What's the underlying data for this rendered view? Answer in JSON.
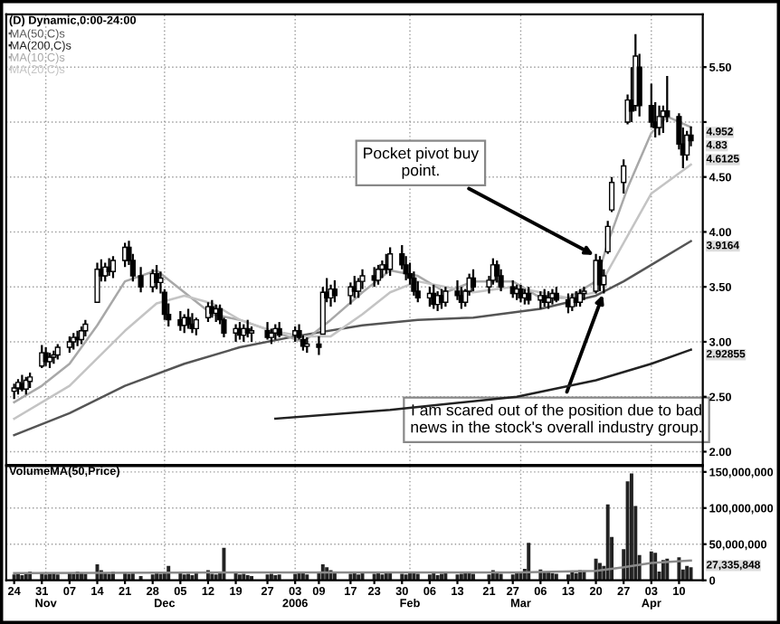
{
  "chart_data": [
    {
      "type": "candlestick",
      "title": "(D) Dynamic,0:00-24:00",
      "x": [
        "2005-10-24",
        "2005-10-25",
        "2005-10-26",
        "2005-10-27",
        "2005-10-28",
        "2005-10-31",
        "2005-11-01",
        "2005-11-02",
        "2005-11-03",
        "2005-11-04",
        "2005-11-07",
        "2005-11-08",
        "2005-11-09",
        "2005-11-10",
        "2005-11-11",
        "2005-11-14",
        "2005-11-15",
        "2005-11-16",
        "2005-11-17",
        "2005-11-18",
        "2005-11-21",
        "2005-11-22",
        "2005-11-23",
        "2005-11-25",
        "2005-11-28",
        "2005-11-29",
        "2005-11-30",
        "2005-12-01",
        "2005-12-02",
        "2005-12-05",
        "2005-12-06",
        "2005-12-07",
        "2005-12-08",
        "2005-12-09",
        "2005-12-12",
        "2005-12-13",
        "2005-12-14",
        "2005-12-15",
        "2005-12-16",
        "2005-12-19",
        "2005-12-20",
        "2005-12-21",
        "2005-12-22",
        "2005-12-23",
        "2005-12-27",
        "2005-12-28",
        "2005-12-29",
        "2005-12-30",
        "2006-01-03",
        "2006-01-04",
        "2006-01-05",
        "2006-01-06",
        "2006-01-09",
        "2006-01-10",
        "2006-01-11",
        "2006-01-12",
        "2006-01-13",
        "2006-01-17",
        "2006-01-18",
        "2006-01-19",
        "2006-01-20",
        "2006-01-23",
        "2006-01-24",
        "2006-01-25",
        "2006-01-26",
        "2006-01-27",
        "2006-01-30",
        "2006-01-31",
        "2006-02-01",
        "2006-02-02",
        "2006-02-03",
        "2006-02-06",
        "2006-02-07",
        "2006-02-08",
        "2006-02-09",
        "2006-02-10",
        "2006-02-13",
        "2006-02-14",
        "2006-02-15",
        "2006-02-16",
        "2006-02-17",
        "2006-02-21",
        "2006-02-22",
        "2006-02-23",
        "2006-02-24",
        "2006-02-27",
        "2006-02-28",
        "2006-03-01",
        "2006-03-02",
        "2006-03-03",
        "2006-03-06",
        "2006-03-07",
        "2006-03-08",
        "2006-03-09",
        "2006-03-10",
        "2006-03-13",
        "2006-03-14",
        "2006-03-15",
        "2006-03-16",
        "2006-03-17",
        "2006-03-20",
        "2006-03-21",
        "2006-03-22",
        "2006-03-23",
        "2006-03-24",
        "2006-03-27",
        "2006-03-28",
        "2006-03-29",
        "2006-03-30",
        "2006-03-31",
        "2006-04-03",
        "2006-04-04",
        "2006-04-05",
        "2006-04-06",
        "2006-04-07",
        "2006-04-10",
        "2006-04-11",
        "2006-04-12",
        "2006-04-13"
      ],
      "ohlc": [
        [
          2.55,
          2.62,
          2.48,
          2.58
        ],
        [
          2.58,
          2.66,
          2.52,
          2.63
        ],
        [
          2.62,
          2.7,
          2.55,
          2.57
        ],
        [
          2.57,
          2.68,
          2.52,
          2.65
        ],
        [
          2.64,
          2.72,
          2.58,
          2.68
        ],
        [
          2.78,
          2.97,
          2.76,
          2.9
        ],
        [
          2.9,
          2.95,
          2.78,
          2.82
        ],
        [
          2.82,
          2.9,
          2.76,
          2.86
        ],
        [
          2.86,
          2.92,
          2.8,
          2.88
        ],
        [
          2.88,
          2.98,
          2.84,
          2.95
        ],
        [
          2.95,
          3.05,
          2.9,
          3.0
        ],
        [
          3.0,
          3.08,
          2.93,
          3.04
        ],
        [
          3.04,
          3.1,
          2.96,
          3.02
        ],
        [
          3.02,
          3.14,
          2.98,
          3.1
        ],
        [
          3.1,
          3.2,
          3.05,
          3.16
        ],
        [
          3.36,
          3.72,
          3.36,
          3.66
        ],
        [
          3.66,
          3.75,
          3.55,
          3.6
        ],
        [
          3.6,
          3.72,
          3.55,
          3.68
        ],
        [
          3.68,
          3.76,
          3.6,
          3.64
        ],
        [
          3.64,
          3.78,
          3.58,
          3.74
        ],
        [
          3.74,
          3.9,
          3.68,
          3.86
        ],
        [
          3.86,
          3.92,
          3.7,
          3.74
        ],
        [
          3.74,
          3.8,
          3.55,
          3.6
        ],
        [
          3.6,
          3.68,
          3.45,
          3.5
        ],
        [
          3.5,
          3.66,
          3.45,
          3.62
        ],
        [
          3.62,
          3.7,
          3.48,
          3.54
        ],
        [
          3.54,
          3.64,
          3.44,
          3.58
        ],
        [
          3.45,
          3.48,
          3.2,
          3.25
        ],
        [
          3.25,
          3.35,
          3.14,
          3.2
        ],
        [
          3.2,
          3.28,
          3.1,
          3.15
        ],
        [
          3.15,
          3.25,
          3.08,
          3.22
        ],
        [
          3.22,
          3.3,
          3.12,
          3.16
        ],
        [
          3.16,
          3.26,
          3.08,
          3.12
        ],
        [
          3.12,
          3.22,
          3.06,
          3.2
        ],
        [
          3.22,
          3.36,
          3.18,
          3.32
        ],
        [
          3.32,
          3.38,
          3.22,
          3.26
        ],
        [
          3.26,
          3.34,
          3.18,
          3.3
        ],
        [
          3.3,
          3.34,
          3.16,
          3.2
        ],
        [
          3.2,
          3.22,
          3.04,
          3.08
        ],
        [
          3.08,
          3.16,
          3.0,
          3.12
        ],
        [
          3.12,
          3.18,
          3.02,
          3.06
        ],
        [
          3.06,
          3.16,
          3.0,
          3.12
        ],
        [
          3.12,
          3.2,
          3.04,
          3.08
        ],
        [
          3.08,
          3.14,
          3.0,
          3.1
        ],
        [
          3.1,
          3.18,
          3.02,
          3.04
        ],
        [
          3.04,
          3.12,
          2.98,
          3.08
        ],
        [
          3.08,
          3.16,
          3.02,
          3.12
        ],
        [
          3.12,
          3.18,
          3.04,
          3.06
        ],
        [
          3.06,
          3.14,
          3.0,
          3.1
        ],
        [
          3.1,
          3.16,
          3.02,
          3.04
        ],
        [
          3.02,
          3.06,
          2.92,
          2.96
        ],
        [
          2.96,
          3.04,
          2.9,
          2.98
        ],
        [
          2.98,
          3.05,
          2.88,
          2.95
        ],
        [
          3.07,
          3.5,
          3.07,
          3.45
        ],
        [
          3.45,
          3.58,
          3.36,
          3.4
        ],
        [
          3.4,
          3.52,
          3.32,
          3.48
        ],
        [
          3.48,
          3.56,
          3.36,
          3.42
        ],
        [
          3.42,
          3.54,
          3.34,
          3.5
        ],
        [
          3.5,
          3.6,
          3.4,
          3.46
        ],
        [
          3.46,
          3.58,
          3.4,
          3.55
        ],
        [
          3.55,
          3.66,
          3.48,
          3.6
        ],
        [
          3.6,
          3.68,
          3.5,
          3.56
        ],
        [
          3.56,
          3.7,
          3.52,
          3.66
        ],
        [
          3.66,
          3.74,
          3.58,
          3.7
        ],
        [
          3.7,
          3.8,
          3.62,
          3.66
        ],
        [
          3.66,
          3.86,
          3.6,
          3.8
        ],
        [
          3.8,
          3.88,
          3.66,
          3.7
        ],
        [
          3.7,
          3.78,
          3.56,
          3.62
        ],
        [
          3.62,
          3.72,
          3.52,
          3.58
        ],
        [
          3.58,
          3.64,
          3.42,
          3.46
        ],
        [
          3.46,
          3.55,
          3.36,
          3.4
        ],
        [
          3.4,
          3.5,
          3.32,
          3.44
        ],
        [
          3.44,
          3.52,
          3.3,
          3.34
        ],
        [
          3.34,
          3.46,
          3.28,
          3.42
        ],
        [
          3.42,
          3.48,
          3.3,
          3.36
        ],
        [
          3.36,
          3.5,
          3.32,
          3.46
        ],
        [
          3.46,
          3.56,
          3.38,
          3.42
        ],
        [
          3.42,
          3.5,
          3.3,
          3.36
        ],
        [
          3.36,
          3.48,
          3.32,
          3.46
        ],
        [
          3.46,
          3.62,
          3.42,
          3.58
        ],
        [
          3.58,
          3.66,
          3.46,
          3.5
        ],
        [
          3.5,
          3.6,
          3.44,
          3.56
        ],
        [
          3.56,
          3.76,
          3.52,
          3.7
        ],
        [
          3.7,
          3.74,
          3.54,
          3.6
        ],
        [
          3.6,
          3.66,
          3.46,
          3.5
        ],
        [
          3.5,
          3.56,
          3.4,
          3.44
        ],
        [
          3.44,
          3.52,
          3.38,
          3.48
        ],
        [
          3.48,
          3.52,
          3.36,
          3.4
        ],
        [
          3.4,
          3.48,
          3.34,
          3.44
        ],
        [
          3.44,
          3.5,
          3.34,
          3.38
        ],
        [
          3.38,
          3.46,
          3.3,
          3.42
        ],
        [
          3.42,
          3.48,
          3.32,
          3.36
        ],
        [
          3.36,
          3.46,
          3.3,
          3.4
        ],
        [
          3.4,
          3.48,
          3.34,
          3.44
        ],
        [
          3.44,
          3.5,
          3.36,
          3.38
        ],
        [
          3.38,
          3.44,
          3.26,
          3.32
        ],
        [
          3.32,
          3.44,
          3.28,
          3.4
        ],
        [
          3.4,
          3.46,
          3.32,
          3.36
        ],
        [
          3.36,
          3.48,
          3.32,
          3.44
        ],
        [
          3.44,
          3.5,
          3.38,
          3.46
        ],
        [
          3.46,
          3.8,
          3.44,
          3.74
        ],
        [
          3.74,
          3.78,
          3.46,
          3.52
        ],
        [
          3.52,
          3.66,
          3.44,
          3.6
        ],
        [
          3.82,
          4.1,
          3.8,
          4.05
        ],
        [
          4.2,
          4.5,
          4.18,
          4.45
        ],
        [
          4.45,
          4.66,
          4.35,
          4.6
        ],
        [
          5.0,
          5.25,
          4.98,
          5.2
        ],
        [
          5.2,
          5.5,
          5.0,
          5.1
        ],
        [
          5.15,
          5.8,
          5.1,
          5.6
        ],
        [
          5.5,
          5.62,
          5.05,
          5.15
        ],
        [
          5.15,
          5.35,
          4.95,
          5.0
        ],
        [
          5.0,
          5.18,
          4.86,
          4.95
        ],
        [
          4.95,
          5.15,
          4.88,
          5.05
        ],
        [
          5.05,
          5.15,
          4.9,
          5.1
        ],
        [
          5.1,
          5.42,
          5.0,
          5.05
        ],
        [
          5.05,
          5.08,
          4.75,
          4.8
        ],
        [
          4.8,
          4.95,
          4.58,
          4.7
        ],
        [
          4.7,
          4.92,
          4.65,
          4.88
        ],
        [
          4.88,
          4.96,
          4.78,
          4.83
        ]
      ],
      "color": "#000000",
      "series": [
        {
          "name": "MA(50,C)s",
          "type": "line",
          "color": "#555555",
          "x": [
            "2005-10-24",
            "2005-11-07",
            "2005-11-21",
            "2005-12-06",
            "2005-12-20",
            "2006-01-03",
            "2006-01-20",
            "2006-02-03",
            "2006-02-17",
            "2006-03-06",
            "2006-03-20",
            "2006-03-27",
            "2006-04-03",
            "2006-04-13"
          ],
          "values": [
            2.15,
            2.35,
            2.6,
            2.8,
            2.95,
            3.05,
            3.15,
            3.2,
            3.22,
            3.3,
            3.42,
            3.55,
            3.7,
            3.9164
          ]
        },
        {
          "name": "MA(200,C)s",
          "type": "line",
          "color": "#222222",
          "x": [
            "2005-12-29",
            "2006-01-27",
            "2006-02-28",
            "2006-03-20",
            "2006-04-03",
            "2006-04-13"
          ],
          "values": [
            2.3,
            2.38,
            2.5,
            2.65,
            2.8,
            2.92855
          ]
        },
        {
          "name": "MA(10,C)s",
          "type": "line",
          "color": "#a8a8a8",
          "x": [
            "2005-10-24",
            "2005-10-31",
            "2005-11-07",
            "2005-11-14",
            "2005-11-21",
            "2005-11-29",
            "2005-12-06",
            "2005-12-13",
            "2005-12-20",
            "2005-12-28",
            "2006-01-05",
            "2006-01-12",
            "2006-01-20",
            "2006-01-27",
            "2006-02-03",
            "2006-02-10",
            "2006-02-17",
            "2006-02-27",
            "2006-03-06",
            "2006-03-13",
            "2006-03-20",
            "2006-03-23",
            "2006-03-28",
            "2006-04-03",
            "2006-04-07",
            "2006-04-13"
          ],
          "values": [
            2.45,
            2.6,
            2.8,
            3.15,
            3.55,
            3.65,
            3.45,
            3.25,
            3.2,
            3.1,
            3.0,
            3.2,
            3.45,
            3.65,
            3.6,
            3.45,
            3.55,
            3.55,
            3.4,
            3.4,
            3.55,
            3.9,
            4.4,
            4.9,
            5.05,
            4.952
          ]
        },
        {
          "name": "MA(20,C)s",
          "type": "line",
          "color": "#c4c4c4",
          "x": [
            "2005-10-24",
            "2005-11-07",
            "2005-11-21",
            "2005-11-29",
            "2005-12-06",
            "2005-12-13",
            "2005-12-20",
            "2005-12-28",
            "2006-01-05",
            "2006-01-12",
            "2006-01-20",
            "2006-01-27",
            "2006-02-03",
            "2006-02-10",
            "2006-02-17",
            "2006-02-27",
            "2006-03-06",
            "2006-03-13",
            "2006-03-20",
            "2006-03-27",
            "2006-04-03",
            "2006-04-13"
          ],
          "values": [
            2.3,
            2.6,
            3.1,
            3.35,
            3.42,
            3.35,
            3.2,
            3.1,
            3.05,
            3.05,
            3.25,
            3.45,
            3.55,
            3.5,
            3.45,
            3.5,
            3.45,
            3.4,
            3.45,
            3.9,
            4.35,
            4.6125
          ]
        }
      ],
      "xlim": [
        "2005-10-22",
        "2006-04-16"
      ],
      "xticks": [
        {
          "value": "2005-11-01",
          "label": null
        },
        {
          "value": "2005-12-01",
          "label": null
        },
        {
          "value": "2006-01-03",
          "label": null
        },
        {
          "value": "2006-02-01",
          "label": null
        },
        {
          "value": "2006-03-01",
          "label": null
        },
        {
          "value": "2006-04-03",
          "label": null
        }
      ],
      "ylim": [
        1.88,
        5.98
      ],
      "yticks": [
        {
          "value": 2,
          "label": "2.00"
        },
        {
          "value": 2.5,
          "label": "2.50"
        },
        {
          "value": 3,
          "label": "3.00"
        },
        {
          "value": 3.5,
          "label": "3.50"
        },
        {
          "value": 4,
          "label": "4.00"
        },
        {
          "value": 4.5,
          "label": "4.50"
        },
        {
          "value": 5,
          "label": null
        },
        {
          "value": 5.5,
          "label": "5.50"
        }
      ],
      "tick_labels": "y",
      "grid": true,
      "legend": "top left",
      "annotations": [
        {
          "text": "Pocket pivot buy point.",
          "x": "2006-03-20",
          "y": 3.78
        },
        {
          "text": "I am scared out of the position due to bad news in the stock's overall industry group.",
          "x": "2006-03-22",
          "y": 3.45
        },
        {
          "text": "4.952",
          "x": "2006-04-13",
          "y": 4.952
        },
        {
          "text": "4.83",
          "x": "2006-04-13",
          "y": 4.83
        },
        {
          "text": "4.6125",
          "x": "2006-04-13",
          "y": 4.6125
        },
        {
          "text": "3.9164",
          "x": "2006-04-13",
          "y": 3.9164
        },
        {
          "text": "2.92855",
          "x": "2006-04-13",
          "y": 2.92855
        }
      ]
    },
    {
      "type": "bar",
      "title": "VolumeMA(50,Price)",
      "x": [
        "2005-10-24",
        "2005-10-25",
        "2005-10-26",
        "2005-10-27",
        "2005-10-28",
        "2005-10-31",
        "2005-11-01",
        "2005-11-02",
        "2005-11-03",
        "2005-11-04",
        "2005-11-07",
        "2005-11-08",
        "2005-11-09",
        "2005-11-10",
        "2005-11-11",
        "2005-11-14",
        "2005-11-15",
        "2005-11-16",
        "2005-11-17",
        "2005-11-18",
        "2005-11-21",
        "2005-11-22",
        "2005-11-23",
        "2005-11-25",
        "2005-11-28",
        "2005-11-29",
        "2005-11-30",
        "2005-12-01",
        "2005-12-02",
        "2005-12-05",
        "2005-12-06",
        "2005-12-07",
        "2005-12-08",
        "2005-12-09",
        "2005-12-12",
        "2005-12-13",
        "2005-12-14",
        "2005-12-15",
        "2005-12-16",
        "2005-12-19",
        "2005-12-20",
        "2005-12-21",
        "2005-12-22",
        "2005-12-23",
        "2005-12-27",
        "2005-12-28",
        "2005-12-29",
        "2005-12-30",
        "2006-01-03",
        "2006-01-04",
        "2006-01-05",
        "2006-01-06",
        "2006-01-09",
        "2006-01-10",
        "2006-01-11",
        "2006-01-12",
        "2006-01-13",
        "2006-01-17",
        "2006-01-18",
        "2006-01-19",
        "2006-01-20",
        "2006-01-23",
        "2006-01-24",
        "2006-01-25",
        "2006-01-26",
        "2006-01-27",
        "2006-01-30",
        "2006-01-31",
        "2006-02-01",
        "2006-02-02",
        "2006-02-03",
        "2006-02-06",
        "2006-02-07",
        "2006-02-08",
        "2006-02-09",
        "2006-02-10",
        "2006-02-13",
        "2006-02-14",
        "2006-02-15",
        "2006-02-16",
        "2006-02-17",
        "2006-02-21",
        "2006-02-22",
        "2006-02-23",
        "2006-02-24",
        "2006-02-27",
        "2006-02-28",
        "2006-03-01",
        "2006-03-02",
        "2006-03-03",
        "2006-03-06",
        "2006-03-07",
        "2006-03-08",
        "2006-03-09",
        "2006-03-10",
        "2006-03-13",
        "2006-03-14",
        "2006-03-15",
        "2006-03-16",
        "2006-03-17",
        "2006-03-20",
        "2006-03-21",
        "2006-03-22",
        "2006-03-23",
        "2006-03-24",
        "2006-03-27",
        "2006-03-28",
        "2006-03-29",
        "2006-03-30",
        "2006-03-31",
        "2006-04-03",
        "2006-04-04",
        "2006-04-05",
        "2006-04-06",
        "2006-04-07",
        "2006-04-10",
        "2006-04-11",
        "2006-04-12",
        "2006-04-13"
      ],
      "series": [
        {
          "type": "bar",
          "color": "#222222",
          "values": [
            8000000,
            10000000,
            7000000,
            9000000,
            12000000,
            10000000,
            8000000,
            9000000,
            11000000,
            8000000,
            10000000,
            9000000,
            12000000,
            10000000,
            9000000,
            22000000,
            14000000,
            10000000,
            9000000,
            12000000,
            11000000,
            9000000,
            10000000,
            6000000,
            8000000,
            10000000,
            9000000,
            12000000,
            20000000,
            10000000,
            8000000,
            9000000,
            7000000,
            10000000,
            14000000,
            9000000,
            8000000,
            12000000,
            45000000,
            10000000,
            8000000,
            9000000,
            7000000,
            6000000,
            8000000,
            9000000,
            7000000,
            8000000,
            9000000,
            10000000,
            11000000,
            8000000,
            12000000,
            22000000,
            18000000,
            14000000,
            10000000,
            9000000,
            12000000,
            8000000,
            10000000,
            9000000,
            11000000,
            8000000,
            10000000,
            12000000,
            9000000,
            8000000,
            10000000,
            12000000,
            9000000,
            8000000,
            10000000,
            7000000,
            9000000,
            11000000,
            8000000,
            9000000,
            12000000,
            10000000,
            9000000,
            8000000,
            14000000,
            10000000,
            9000000,
            8000000,
            10000000,
            12000000,
            16000000,
            52000000,
            15000000,
            12000000,
            11000000,
            10000000,
            9000000,
            8000000,
            12000000,
            10000000,
            14000000,
            12000000,
            30000000,
            24000000,
            20000000,
            105000000,
            60000000,
            43000000,
            137000000,
            148000000,
            103000000,
            35000000,
            40000000,
            38000000,
            12000000,
            28000000,
            30000000,
            32000000,
            15000000,
            20000000,
            18000000
          ]
        },
        {
          "type": "line",
          "color": "#8a8a8a",
          "x": [
            "2005-10-24",
            "2005-12-20",
            "2006-02-28",
            "2006-03-20",
            "2006-03-27",
            "2006-04-03",
            "2006-04-13"
          ],
          "values": [
            10000000,
            11000000,
            11000000,
            13000000,
            18000000,
            24000000,
            27335848
          ]
        }
      ],
      "xlim": [
        "2005-10-22",
        "2006-04-16"
      ],
      "xticks": [
        {
          "value": "2005-10-24",
          "label": "24"
        },
        {
          "value": "2005-10-31",
          "label": "31"
        },
        {
          "value": "2005-11-07",
          "label": "07"
        },
        {
          "value": "2005-11-14",
          "label": "14"
        },
        {
          "value": "2005-11-21",
          "label": "21"
        },
        {
          "value": "2005-11-28",
          "label": "28"
        },
        {
          "value": "2005-12-05",
          "label": "05"
        },
        {
          "value": "2005-12-12",
          "label": "12"
        },
        {
          "value": "2005-12-19",
          "label": "19"
        },
        {
          "value": "2005-12-27",
          "label": "27"
        },
        {
          "value": "2006-01-03",
          "label": "03"
        },
        {
          "value": "2006-01-09",
          "label": "09"
        },
        {
          "value": "2006-01-17",
          "label": "17"
        },
        {
          "value": "2006-01-23",
          "label": "23"
        },
        {
          "value": "2006-01-30",
          "label": "30"
        },
        {
          "value": "2006-02-06",
          "label": "06"
        },
        {
          "value": "2006-02-13",
          "label": "13"
        },
        {
          "value": "2006-02-21",
          "label": "21"
        },
        {
          "value": "2006-02-27",
          "label": "27"
        },
        {
          "value": "2006-03-06",
          "label": "06"
        },
        {
          "value": "2006-03-13",
          "label": "13"
        },
        {
          "value": "2006-03-20",
          "label": "20"
        },
        {
          "value": "2006-03-27",
          "label": "27"
        },
        {
          "value": "2006-04-03",
          "label": "03"
        },
        {
          "value": "2006-04-10",
          "label": "10"
        }
      ],
      "x2lim": [
        "2005-10-22",
        "2006-04-16"
      ],
      "x2ticks": [
        {
          "value": "2005-11-01",
          "label": "Nov"
        },
        {
          "value": "2005-12-01",
          "label": "Dec"
        },
        {
          "value": "2006-01-03",
          "label": "2006"
        },
        {
          "value": "2006-02-01",
          "label": "Feb"
        },
        {
          "value": "2006-03-01",
          "label": "Mar"
        },
        {
          "value": "2006-04-03",
          "label": "Apr"
        }
      ],
      "ylim": [
        0,
        158000000
      ],
      "yticks": [
        0,
        {
          "value": 50000000,
          "label": "50,000,000"
        },
        {
          "value": 100000000,
          "label": "100,000,000"
        },
        {
          "value": 150000000,
          "label": "150,000,000"
        }
      ],
      "grid": true,
      "annotations": [
        {
          "text": "27,335,848",
          "x": "2006-04-13",
          "y": 27335848
        }
      ]
    }
  ]
}
